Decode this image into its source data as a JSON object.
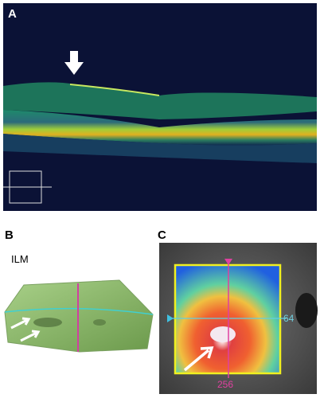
{
  "panels": [
    {
      "label": "A"
    },
    {
      "label": "B",
      "annotation": "ILM"
    },
    {
      "label": "C",
      "y_marker": 64,
      "x_marker": 256
    }
  ]
}
